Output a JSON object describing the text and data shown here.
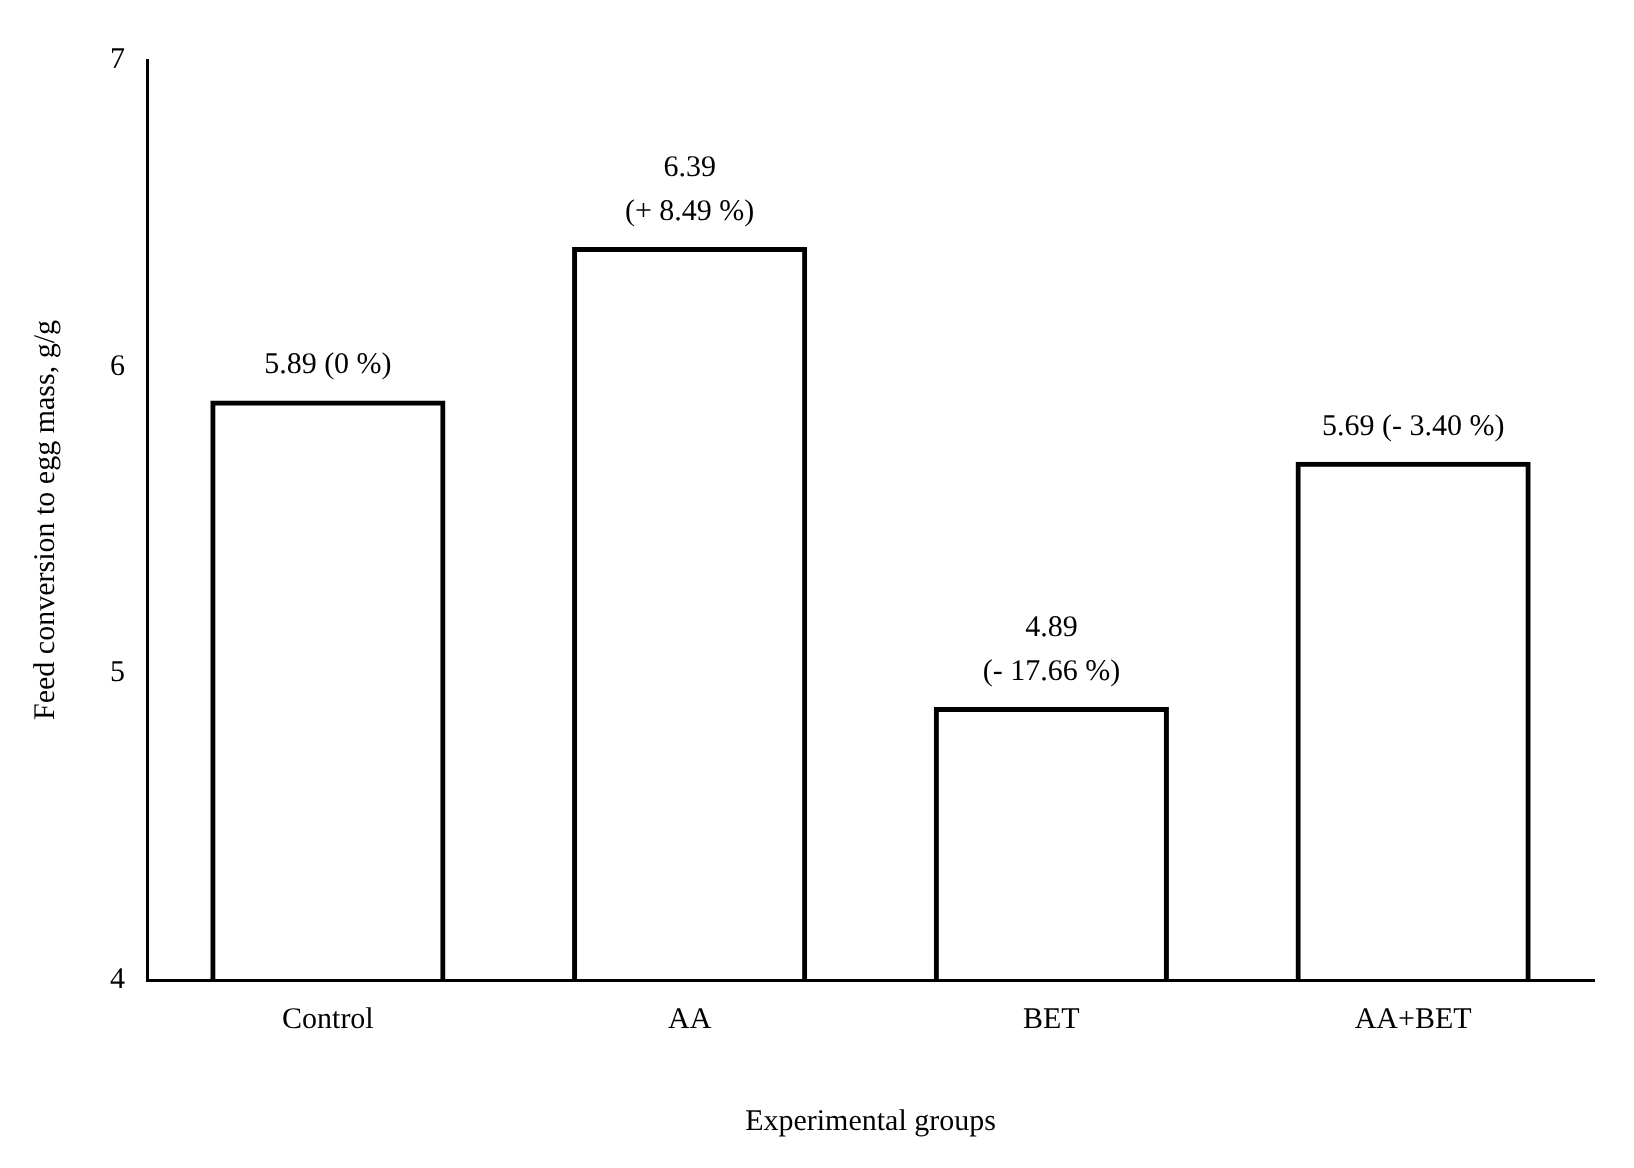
{
  "chart_data": {
    "type": "bar",
    "xlabel": "Experimental groups",
    "ylabel": "Feed conversion to egg mass, g/g",
    "categories": [
      "Control",
      "AA",
      "BET",
      "AA+BET"
    ],
    "values": [
      5.89,
      6.39,
      4.89,
      5.69
    ],
    "color": "#000000",
    "value_labels": [
      "5.89 (0 %)",
      "6.39 (+ 8.49 %)",
      "4.89 (- 17.66 %)",
      "5.69 (- 3.40 %)"
    ],
    "ylim": [
      4,
      7
    ],
    "yticks": [
      4,
      5,
      6,
      7
    ],
    "grid": false,
    "legend": false
  }
}
